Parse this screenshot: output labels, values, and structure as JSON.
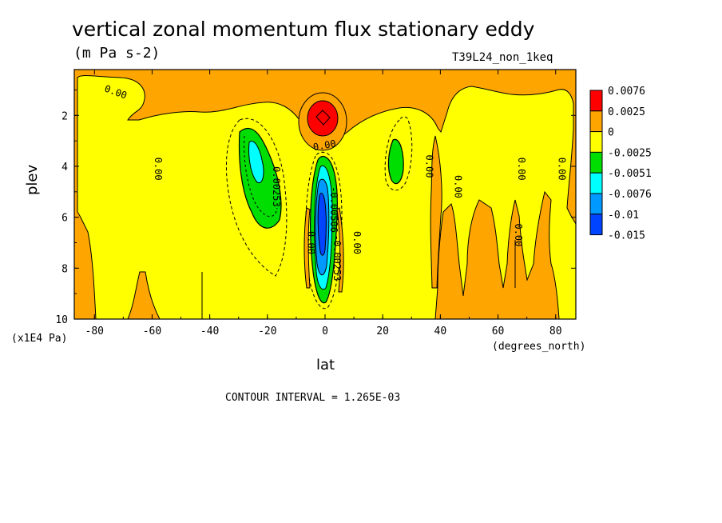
{
  "chart_data": {
    "type": "heatmap",
    "title": "vertical zonal momentum flux stationary eddy",
    "subtitle": "(m Pa s-2)",
    "run_id": "T39L24_non_1keq",
    "xlabel": "lat",
    "ylabel": "plev",
    "x_unit": "(degrees_north)",
    "y_unit": "(x1E4 Pa)",
    "xlim": [
      -87,
      87
    ],
    "ylim": [
      10,
      0.2
    ],
    "x_ticks": [
      -80,
      -60,
      -40,
      -20,
      0,
      20,
      40,
      60,
      80
    ],
    "x_tick_labels": [
      "-80",
      "-60",
      "-40",
      "-20",
      "0",
      "20",
      "40",
      "60",
      "80"
    ],
    "y_ticks": [
      2,
      4,
      6,
      8,
      10
    ],
    "y_tick_labels": [
      "2",
      "4",
      "6",
      "8",
      "10"
    ],
    "contour_interval_text": "CONTOUR INTERVAL = 1.265E-03",
    "legend": {
      "placement": "right",
      "levels": [
        "0.0076",
        "0.0025",
        "0",
        "-0.0025",
        "-0.0051",
        "-0.0076",
        "-0.01",
        "-0.015"
      ],
      "colors": [
        "#ff0000",
        "#ffa500",
        "#ffff00",
        "#00dd00",
        "#00ffff",
        "#0099ff",
        "#0044ff"
      ]
    },
    "contour_labels": [
      {
        "text": "0.00",
        "lat": -73,
        "plev": 1.2,
        "angle": 20
      },
      {
        "text": "0.00",
        "lat": -59,
        "plev": 4.1,
        "angle": 90
      },
      {
        "text": "0.00253",
        "lat": -18,
        "plev": 4.8,
        "angle": 90
      },
      {
        "text": "0.00",
        "lat": 0,
        "plev": 3.3,
        "angle": -10
      },
      {
        "text": "0.00",
        "lat": -6,
        "plev": 7.0,
        "angle": 90
      },
      {
        "text": "-0.00506",
        "lat": 2,
        "plev": 5.7,
        "angle": 90
      },
      {
        "text": "-0.00253",
        "lat": 3,
        "plev": 7.6,
        "angle": 90
      },
      {
        "text": "0.00",
        "lat": 10,
        "plev": 7.0,
        "angle": 90
      },
      {
        "text": "0.00",
        "lat": 35,
        "plev": 4.0,
        "angle": 90
      },
      {
        "text": "0.00",
        "lat": 45,
        "plev": 4.8,
        "angle": 90
      },
      {
        "text": "0.00",
        "lat": 67,
        "plev": 4.1,
        "angle": 90
      },
      {
        "text": "0.00",
        "lat": 66,
        "plev": 6.7,
        "angle": 90
      },
      {
        "text": "0.00",
        "lat": 81,
        "plev": 4.1,
        "angle": 90
      }
    ],
    "regions": [
      {
        "name": "orange-background",
        "color": "#ffa500",
        "level": "0 to 0.0025"
      },
      {
        "name": "red-maximum",
        "color": "#ff0000",
        "level": "> 0.0076",
        "center_lat": -0.5,
        "center_plev": 2.0
      },
      {
        "name": "green-south",
        "color": "#00dd00",
        "level": "-0.0051 to -0.0025",
        "center_lat": -24,
        "center_plev": 4.5
      },
      {
        "name": "cyan-south",
        "color": "#00ffff",
        "level": "-0.0076 to -0.0051",
        "center_lat": -25,
        "center_plev": 3.7
      },
      {
        "name": "green-north",
        "color": "#00dd00",
        "level": "-0.0051 to -0.0025",
        "center_lat": 25,
        "center_plev": 3.8
      },
      {
        "name": "equatorial-minimum",
        "color": "#0044ff",
        "level": "< -0.015",
        "center_lat": -0.5,
        "center_plev": 6.0
      }
    ]
  }
}
